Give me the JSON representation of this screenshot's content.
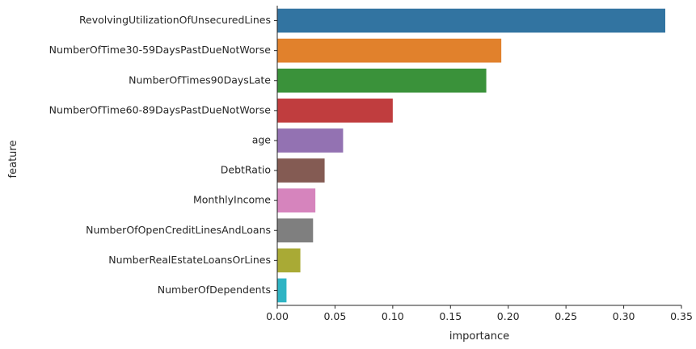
{
  "chart_data": {
    "type": "bar",
    "orientation": "horizontal",
    "xlabel": "importance",
    "ylabel": "feature",
    "xlim": [
      0,
      0.35
    ],
    "xticks": [
      0.0,
      0.05,
      0.1,
      0.15,
      0.2,
      0.25,
      0.3,
      0.35
    ],
    "xtick_labels": [
      "0.00",
      "0.05",
      "0.10",
      "0.15",
      "0.20",
      "0.25",
      "0.30",
      "0.35"
    ],
    "grid": false,
    "categories": [
      "RevolvingUtilizationOfUnsecuredLines",
      "NumberOfTime30-59DaysPastDueNotWorse",
      "NumberOfTimes90DaysLate",
      "NumberOfTime60-89DaysPastDueNotWorse",
      "age",
      "DebtRatio",
      "MonthlyIncome",
      "NumberOfOpenCreditLinesAndLoans",
      "NumberRealEstateLoansOrLines",
      "NumberOfDependents"
    ],
    "values": [
      0.336,
      0.194,
      0.181,
      0.1,
      0.057,
      0.041,
      0.033,
      0.031,
      0.02,
      0.008
    ],
    "colors": [
      "#3274a1",
      "#e1812c",
      "#3a923a",
      "#c03d3e",
      "#9372b2",
      "#845b53",
      "#d684bd",
      "#7f7f7f",
      "#a9aa35",
      "#2eb4c4"
    ]
  }
}
